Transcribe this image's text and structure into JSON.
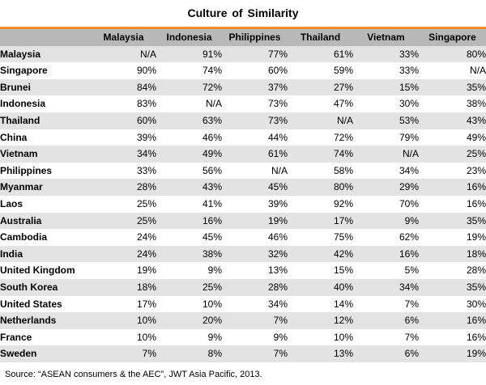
{
  "header": {
    "title": "Culture of Similarity"
  },
  "source": "Source: “ASEAN consumers & the AEC”, JWT Asia Pacific, 2013.",
  "colors": {
    "accent": "#f08a24",
    "header_bg": "#b8b8b8",
    "stripe": "#e3e3e3"
  },
  "chart_data": {
    "type": "table",
    "title": "Culture of Similarity",
    "columns": [
      "Malaysia",
      "Indonesia",
      "Philippines",
      "Thailand",
      "Vietnam",
      "Singapore"
    ],
    "rows": [
      {
        "label": "Malaysia",
        "values": [
          "N/A",
          "91%",
          "77%",
          "61%",
          "33%",
          "80%"
        ]
      },
      {
        "label": "Singapore",
        "values": [
          "90%",
          "74%",
          "60%",
          "59%",
          "33%",
          "N/A"
        ]
      },
      {
        "label": "Brunei",
        "values": [
          "84%",
          "72%",
          "37%",
          "27%",
          "15%",
          "35%"
        ]
      },
      {
        "label": "Indonesia",
        "values": [
          "83%",
          "N/A",
          "73%",
          "47%",
          "30%",
          "38%"
        ]
      },
      {
        "label": "Thailand",
        "values": [
          "60%",
          "63%",
          "73%",
          "N/A",
          "53%",
          "43%"
        ]
      },
      {
        "label": "China",
        "values": [
          "39%",
          "46%",
          "44%",
          "72%",
          "79%",
          "49%"
        ]
      },
      {
        "label": "Vietnam",
        "values": [
          "34%",
          "49%",
          "61%",
          "74%",
          "N/A",
          "25%"
        ]
      },
      {
        "label": "Philippines",
        "values": [
          "33%",
          "56%",
          "N/A",
          "58%",
          "34%",
          "23%"
        ]
      },
      {
        "label": "Myanmar",
        "values": [
          "28%",
          "43%",
          "45%",
          "80%",
          "29%",
          "16%"
        ]
      },
      {
        "label": "Laos",
        "values": [
          "25%",
          "41%",
          "39%",
          "92%",
          "70%",
          "16%"
        ]
      },
      {
        "label": "Australia",
        "values": [
          "25%",
          "16%",
          "19%",
          "17%",
          "9%",
          "35%"
        ]
      },
      {
        "label": "Cambodia",
        "values": [
          "24%",
          "45%",
          "46%",
          "75%",
          "62%",
          "19%"
        ]
      },
      {
        "label": "India",
        "values": [
          "24%",
          "38%",
          "32%",
          "42%",
          "16%",
          "18%"
        ]
      },
      {
        "label": "United Kingdom",
        "values": [
          "19%",
          "9%",
          "13%",
          "15%",
          "5%",
          "28%"
        ]
      },
      {
        "label": "South Korea",
        "values": [
          "18%",
          "25%",
          "28%",
          "40%",
          "34%",
          "35%"
        ]
      },
      {
        "label": "United States",
        "values": [
          "17%",
          "10%",
          "34%",
          "14%",
          "7%",
          "30%"
        ]
      },
      {
        "label": "Netherlands",
        "values": [
          "10%",
          "20%",
          "7%",
          "12%",
          "6%",
          "16%"
        ]
      },
      {
        "label": "France",
        "values": [
          "10%",
          "9%",
          "9%",
          "10%",
          "7%",
          "16%"
        ]
      },
      {
        "label": "Sweden",
        "values": [
          "7%",
          "8%",
          "7%",
          "13%",
          "6%",
          "19%"
        ]
      }
    ]
  }
}
